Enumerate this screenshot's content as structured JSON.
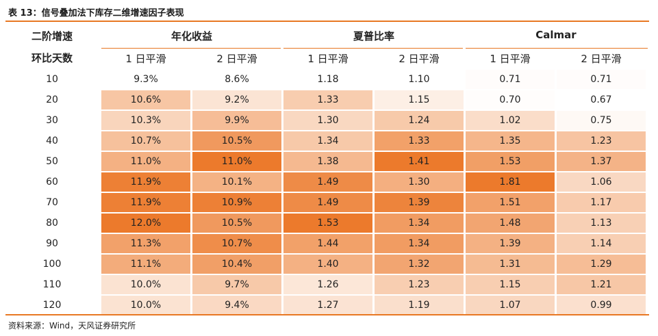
{
  "caption": "表 13：信号叠加法下库存二维增速因子表现",
  "header": {
    "row_label_line1": "二阶增速",
    "row_label_line2": "环比天数",
    "groups": [
      "年化收益",
      "夏普比率",
      "Calmar"
    ],
    "sub": [
      "1 日平滑",
      "2 日平滑",
      "1 日平滑",
      "2 日平滑",
      "1 日平滑",
      "2 日平滑"
    ]
  },
  "rows": [
    {
      "label": "10",
      "cells": [
        "9.3%",
        "8.6%",
        "1.18",
        "1.10",
        "0.71",
        "0.71"
      ]
    },
    {
      "label": "20",
      "cells": [
        "10.6%",
        "9.2%",
        "1.33",
        "1.15",
        "0.70",
        "0.67"
      ]
    },
    {
      "label": "30",
      "cells": [
        "10.3%",
        "9.9%",
        "1.30",
        "1.24",
        "1.02",
        "0.75"
      ]
    },
    {
      "label": "40",
      "cells": [
        "10.7%",
        "10.5%",
        "1.34",
        "1.33",
        "1.35",
        "1.23"
      ]
    },
    {
      "label": "50",
      "cells": [
        "11.0%",
        "11.0%",
        "1.38",
        "1.41",
        "1.53",
        "1.37"
      ]
    },
    {
      "label": "60",
      "cells": [
        "11.9%",
        "10.1%",
        "1.49",
        "1.30",
        "1.81",
        "1.06"
      ]
    },
    {
      "label": "70",
      "cells": [
        "11.9%",
        "10.9%",
        "1.49",
        "1.39",
        "1.51",
        "1.17"
      ]
    },
    {
      "label": "80",
      "cells": [
        "12.0%",
        "10.5%",
        "1.53",
        "1.34",
        "1.48",
        "1.13"
      ]
    },
    {
      "label": "90",
      "cells": [
        "11.3%",
        "10.7%",
        "1.44",
        "1.34",
        "1.39",
        "1.14"
      ]
    },
    {
      "label": "100",
      "cells": [
        "11.1%",
        "10.4%",
        "1.40",
        "1.32",
        "1.31",
        "1.29"
      ]
    },
    {
      "label": "110",
      "cells": [
        "10.0%",
        "9.7%",
        "1.26",
        "1.23",
        "1.15",
        "1.21"
      ]
    },
    {
      "label": "120",
      "cells": [
        "10.0%",
        "9.4%",
        "1.27",
        "1.19",
        "1.07",
        "0.99"
      ]
    }
  ],
  "heat": {
    "low_color": "#ffffff",
    "high_color": "#ec7a2c",
    "column_ranges": [
      [
        9.3,
        12.0
      ],
      [
        8.6,
        11.0
      ],
      [
        1.18,
        1.53
      ],
      [
        1.1,
        1.41
      ],
      [
        0.67,
        1.81
      ],
      [
        0.67,
        1.81
      ]
    ]
  },
  "source": "资料来源：Wind，天风证券研究所"
}
